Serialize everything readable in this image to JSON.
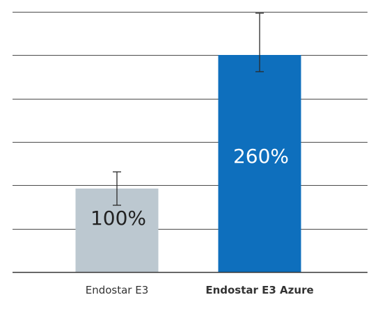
{
  "chart_data": {
    "type": "bar",
    "categories": [
      "Endostar E3",
      "Endostar E3 Azure"
    ],
    "values": [
      100,
      260
    ],
    "value_labels": [
      "100%",
      "260%"
    ],
    "error_low": [
      80,
      240
    ],
    "error_high": [
      120,
      310
    ],
    "ylim": [
      0,
      300
    ],
    "grid": true,
    "bar_colors": [
      "#bcc8d0",
      "#0e6fbd"
    ],
    "value_label_colors": [
      "#222222",
      "#ffffff"
    ],
    "category_label_weights": [
      "normal",
      "bold"
    ],
    "title": "",
    "xlabel": "",
    "ylabel": ""
  }
}
